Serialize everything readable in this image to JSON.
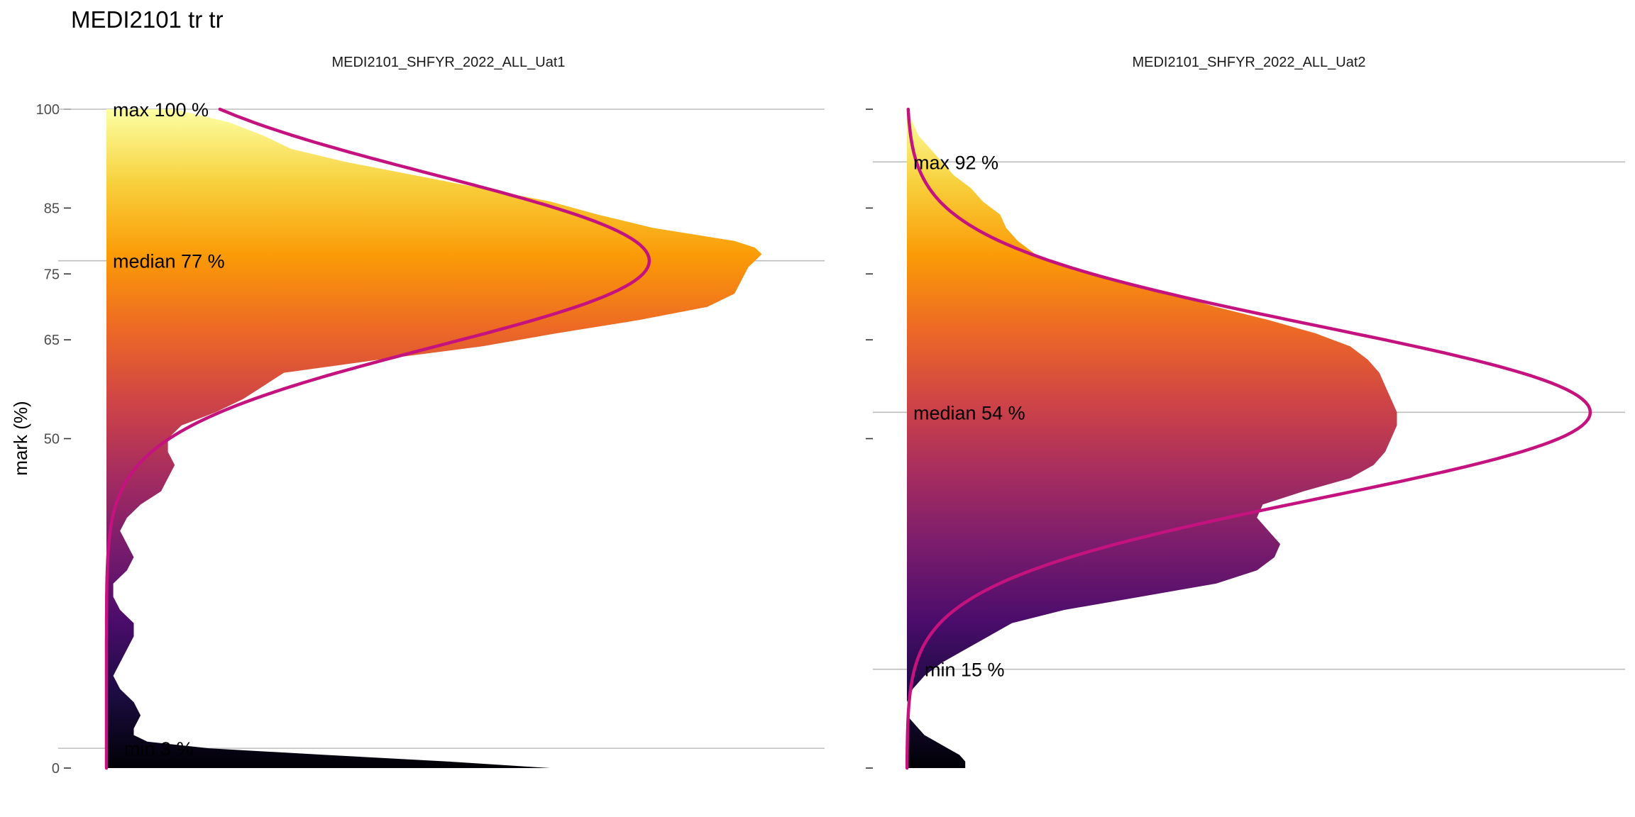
{
  "chart_data": {
    "type": "area",
    "title": "MEDI2101 tr tr",
    "ylabel": "mark (%)",
    "ylim": [
      0,
      100
    ],
    "yticks": [
      0,
      50,
      65,
      75,
      85,
      100
    ],
    "colors": {
      "normal_curve": "#C4127E",
      "reference_line": "#BDBDBD",
      "gradient_stops": [
        "#000004",
        "#1B0C41",
        "#4A0C6B",
        "#781C6D",
        "#A52C60",
        "#CF4446",
        "#ED6925",
        "#FB9B06",
        "#F7D13D",
        "#FCFFA4"
      ]
    },
    "panels": [
      {
        "name": "MEDI2101_SHFYR_2022_ALL_Uat1",
        "annotations": [
          {
            "label": "max 100 %",
            "value": 100
          },
          {
            "label": "median 77 %",
            "value": 77
          },
          {
            "label": "min 3 %",
            "value": 3
          }
        ],
        "normal": {
          "mean": 77,
          "sd": 13
        },
        "density": {
          "y": [
            0,
            1,
            2,
            3,
            4,
            5,
            6,
            8,
            10,
            12,
            14,
            16,
            18,
            20,
            22,
            24,
            26,
            28,
            30,
            32,
            34,
            36,
            38,
            40,
            42,
            44,
            46,
            48,
            50,
            52,
            54,
            56,
            58,
            60,
            62,
            64,
            66,
            68,
            70,
            72,
            74,
            76,
            78,
            79,
            80,
            82,
            84,
            86,
            88,
            90,
            92,
            94,
            96,
            98,
            100
          ],
          "x": [
            0.65,
            0.5,
            0.32,
            0.15,
            0.06,
            0.04,
            0.04,
            0.05,
            0.04,
            0.02,
            0.01,
            0.02,
            0.03,
            0.04,
            0.04,
            0.02,
            0.01,
            0.01,
            0.03,
            0.04,
            0.03,
            0.02,
            0.03,
            0.05,
            0.08,
            0.09,
            0.1,
            0.09,
            0.09,
            0.11,
            0.16,
            0.2,
            0.23,
            0.26,
            0.4,
            0.55,
            0.66,
            0.78,
            0.88,
            0.92,
            0.93,
            0.94,
            0.96,
            0.95,
            0.92,
            0.8,
            0.72,
            0.65,
            0.55,
            0.45,
            0.35,
            0.27,
            0.23,
            0.18,
            0.1
          ]
        }
      },
      {
        "name": "MEDI2101_SHFYR_2022_ALL_Uat2",
        "annotations": [
          {
            "label": "max 92 %",
            "value": 92
          },
          {
            "label": "median 54 %",
            "value": 54
          },
          {
            "label": "min 15 %",
            "value": 15
          }
        ],
        "normal": {
          "mean": 54,
          "sd": 13
        },
        "density": {
          "y": [
            0,
            1,
            2,
            3,
            4,
            5,
            6,
            7,
            8,
            10,
            12,
            14,
            16,
            18,
            20,
            22,
            24,
            26,
            28,
            30,
            32,
            34,
            36,
            38,
            40,
            42,
            44,
            46,
            48,
            50,
            52,
            54,
            56,
            58,
            60,
            62,
            64,
            66,
            68,
            70,
            72,
            74,
            76,
            78,
            80,
            82,
            84,
            86,
            88,
            90,
            92,
            94,
            96,
            98,
            100
          ],
          "x": [
            0.1,
            0.1,
            0.09,
            0.07,
            0.05,
            0.03,
            0.02,
            0.01,
            0.0,
            0.0,
            0.01,
            0.03,
            0.06,
            0.1,
            0.14,
            0.18,
            0.27,
            0.4,
            0.53,
            0.6,
            0.63,
            0.64,
            0.62,
            0.6,
            0.61,
            0.68,
            0.76,
            0.8,
            0.82,
            0.83,
            0.84,
            0.84,
            0.83,
            0.82,
            0.81,
            0.79,
            0.76,
            0.7,
            0.62,
            0.53,
            0.45,
            0.36,
            0.28,
            0.22,
            0.19,
            0.17,
            0.16,
            0.13,
            0.11,
            0.08,
            0.06,
            0.04,
            0.02,
            0.01,
            0.0
          ]
        }
      }
    ]
  }
}
